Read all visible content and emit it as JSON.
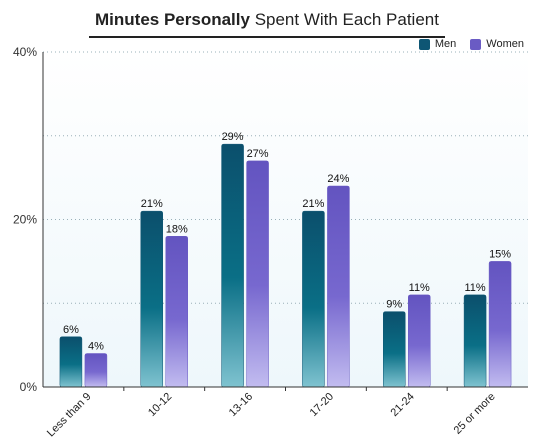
{
  "chart_data": {
    "type": "bar",
    "title_bold": "Minutes Personally",
    "title_rest": "Spent With Each Patient",
    "categories": [
      "Less than 9",
      "10-12",
      "13-16",
      "17-20",
      "21-24",
      "25 or more"
    ],
    "series": [
      {
        "name": "Men",
        "values": [
          6,
          21,
          29,
          21,
          9,
          11
        ],
        "labels": [
          "6%",
          "21%",
          "29%",
          "21%",
          "9%",
          "11%"
        ],
        "color": "#0e5674"
      },
      {
        "name": "Women",
        "values": [
          4,
          18,
          27,
          24,
          11,
          15
        ],
        "labels": [
          "4%",
          "18%",
          "27%",
          "24%",
          "11%",
          "15%"
        ],
        "color": "#6a5bc4"
      }
    ],
    "ylim": [
      0,
      40
    ],
    "yticks": [
      0,
      20,
      40
    ],
    "ytick_labels": [
      "0%",
      "20%",
      "40%"
    ],
    "xlabel": "",
    "ylabel": "",
    "grid": true,
    "legend_position": "top-right",
    "plot_bg_color": "#eef7fb"
  }
}
